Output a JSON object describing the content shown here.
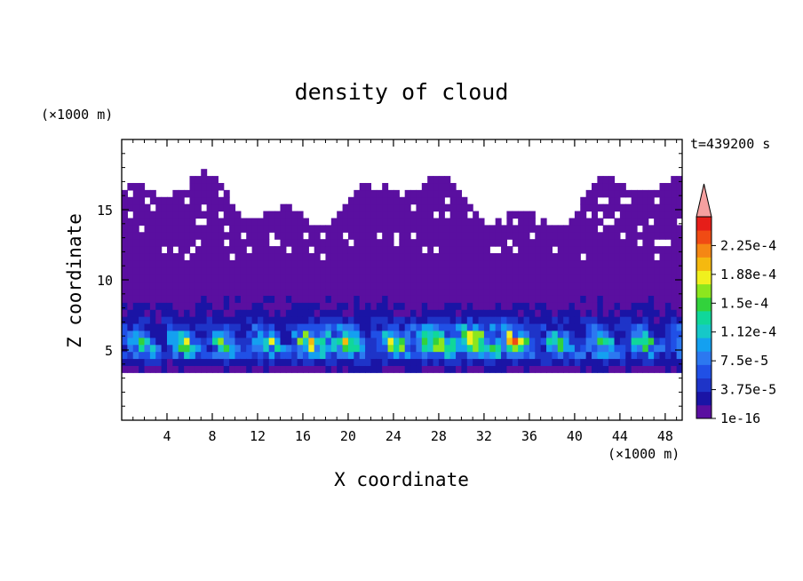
{
  "chart_data": {
    "type": "heatmap",
    "title": "density of cloud",
    "time_label": "t=439200 s",
    "xlabel": "X coordinate",
    "ylabel": "Z coordinate",
    "x_unit": "(×1000 m)",
    "y_unit": "(×1000 m)",
    "xlim": [
      0,
      49.5
    ],
    "ylim": [
      0,
      20
    ],
    "x_ticks": [
      4,
      8,
      12,
      16,
      20,
      24,
      28,
      32,
      36,
      40,
      44,
      48
    ],
    "x_tick_labels": [
      "4",
      "8",
      "12",
      "16",
      "20",
      "24",
      "28",
      "32",
      "36",
      "40",
      "44",
      "48"
    ],
    "y_ticks": [
      5,
      10,
      15
    ],
    "y_tick_labels": [
      "5",
      "10",
      "15"
    ],
    "field": {
      "x_step_km": 0.5,
      "z_levels_km": [
        3.5,
        4.5,
        5.5,
        6.5,
        7.5,
        9,
        11,
        13,
        15.5
      ],
      "rows": [
        {
          "z_km": 3.5,
          "value": 1.2e-05
        },
        {
          "z_km": 4.5,
          "value": 6e-05
        },
        {
          "z_km": 5.5,
          "value": 0.00011
        },
        {
          "z_km": 6.5,
          "value": 5e-05
        },
        {
          "z_km": 7.5,
          "value": 2.5e-05
        },
        {
          "z_km": 9.0,
          "value": 1.2e-05
        },
        {
          "z_km": 11.0,
          "value": 5e-06
        },
        {
          "z_km": 13.0,
          "value": 1e-06
        },
        {
          "z_km": 15.5,
          "value": 1e-07
        }
      ],
      "cloud_base_km": 3.4,
      "cloud_top_km": 16.6,
      "peak_value": 0.00019,
      "peak_x_km": [
        18,
        26,
        30,
        33
      ]
    },
    "colorbar": {
      "levels": [
        1e-16,
        1.875e-05,
        3.75e-05,
        5.625e-05,
        7.5e-05,
        9.375e-05,
        0.0001125,
        0.00013125,
        0.00015,
        0.00016875,
        0.0001875,
        0.00020625,
        0.000225,
        0.00024375
      ],
      "colors": [
        "#5a0fa0",
        "#1a14a5",
        "#1e34c8",
        "#2050e6",
        "#2c78f0",
        "#14a0f0",
        "#16c8c8",
        "#10d79a",
        "#32d23c",
        "#8ce61e",
        "#f0f01e",
        "#f5b90f",
        "#f58714",
        "#f04b14",
        "#e61e19"
      ],
      "over_color": "#f5a0a0",
      "labels": [
        "1e-16",
        "3.75e-5",
        "7.5e-5",
        "1.12e-4",
        "1.5e-4",
        "1.88e-4",
        "2.25e-4"
      ],
      "label_values": [
        1e-16,
        3.75e-05,
        7.5e-05,
        0.0001125,
        0.00015,
        0.0001875,
        0.000225
      ]
    }
  }
}
